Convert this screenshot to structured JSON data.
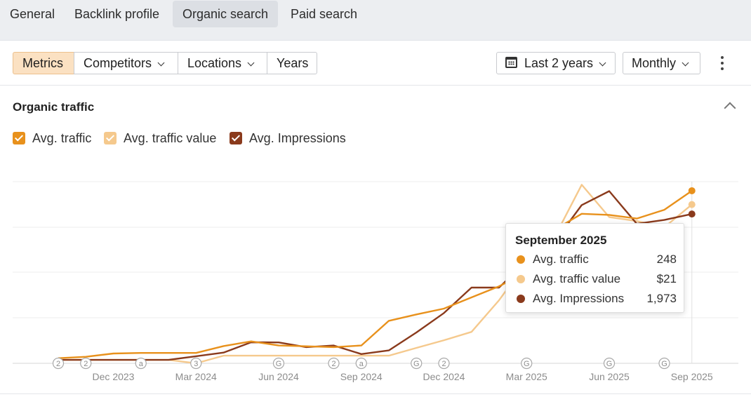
{
  "tabs": [
    {
      "label": "General"
    },
    {
      "label": "Backlink profile"
    },
    {
      "label": "Organic search",
      "active": true
    },
    {
      "label": "Paid search"
    }
  ],
  "toolbar": {
    "metrics": "Metrics",
    "competitors": "Competitors",
    "locations": "Locations",
    "years": "Years",
    "date_range": "Last 2 years",
    "granularity": "Monthly"
  },
  "section": {
    "title": "Organic traffic"
  },
  "colors": {
    "avg_traffic": "#e8911c",
    "avg_traffic_value": "#f5c98d",
    "avg_impressions": "#8a3a1c"
  },
  "legend": [
    {
      "label": "Avg. traffic",
      "color": "#e8911c"
    },
    {
      "label": "Avg. traffic value",
      "color": "#f5c98d"
    },
    {
      "label": "Avg. Impressions",
      "color": "#8a3a1c"
    }
  ],
  "tooltip": {
    "title": "September 2025",
    "rows": [
      {
        "name": "Avg. traffic",
        "value": "248",
        "color": "#e8911c"
      },
      {
        "name": "Avg. traffic value",
        "value": "$21",
        "color": "#f5c98d"
      },
      {
        "name": "Avg. Impressions",
        "value": "1,973",
        "color": "#8a3a1c"
      }
    ]
  },
  "chart_data": {
    "type": "line",
    "x": [
      "2023-10",
      "2023-11",
      "2023-12",
      "2024-01",
      "2024-02",
      "2024-03",
      "2024-04",
      "2024-05",
      "2024-06",
      "2024-07",
      "2024-08",
      "2024-09",
      "2024-10",
      "2024-11",
      "2024-12",
      "2025-01",
      "2025-02",
      "2025-03",
      "2025-04",
      "2025-05",
      "2025-06",
      "2025-07",
      "2025-08",
      "2025-09"
    ],
    "x_tick_labels": [
      "Dec 2023",
      "Mar 2024",
      "Jun 2024",
      "Sep 2024",
      "Dec 2024",
      "Mar 2025",
      "Jun 2025",
      "Sep 2025"
    ],
    "grid": true,
    "y_axis_labels_shown": false,
    "series": [
      {
        "name": "Avg. traffic",
        "normalized_values": [
          0.028,
          0.036,
          0.054,
          0.057,
          0.057,
          0.057,
          0.095,
          0.121,
          0.098,
          0.094,
          0.089,
          0.098,
          0.234,
          0.269,
          0.301,
          0.363,
          0.424,
          0.502,
          0.734,
          0.823,
          0.817,
          0.797,
          0.845,
          0.95
        ]
      },
      {
        "name": "Avg. traffic value",
        "normalized_values": [
          0.019,
          0.019,
          0.019,
          0.019,
          0.019,
          0.0,
          0.042,
          0.042,
          0.042,
          0.042,
          0.042,
          0.042,
          0.042,
          0.085,
          0.127,
          0.173,
          0.347,
          0.555,
          0.69,
          0.983,
          0.805,
          0.783,
          0.749,
          0.874
        ]
      },
      {
        "name": "Avg. Impressions",
        "normalized_values": [
          0.019,
          0.019,
          0.019,
          0.019,
          0.019,
          0.039,
          0.059,
          0.116,
          0.115,
          0.089,
          0.098,
          0.051,
          0.071,
          0.17,
          0.277,
          0.417,
          0.417,
          0.562,
          0.666,
          0.871,
          0.948,
          0.768,
          0.789,
          0.822
        ]
      }
    ],
    "event_markers": [
      {
        "month": "2023-10",
        "label": "2"
      },
      {
        "month": "2023-11",
        "label": "2"
      },
      {
        "month": "2024-01",
        "label": "a"
      },
      {
        "month": "2024-03",
        "label": "3"
      },
      {
        "month": "2024-06",
        "label": "G"
      },
      {
        "month": "2024-08",
        "label": "2"
      },
      {
        "month": "2024-09",
        "label": "a"
      },
      {
        "month": "2024-11",
        "label": "G"
      },
      {
        "month": "2024-12",
        "label": "2"
      },
      {
        "month": "2025-03",
        "label": "G"
      },
      {
        "month": "2025-06",
        "label": "G"
      },
      {
        "month": "2025-08",
        "label": "G"
      }
    ],
    "highlight_month": "2025-09"
  }
}
